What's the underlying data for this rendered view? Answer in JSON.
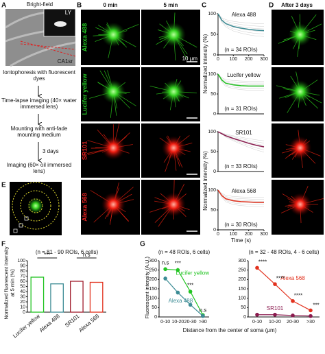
{
  "panel_labels": [
    "A",
    "B",
    "C",
    "D",
    "E",
    "F",
    "G"
  ],
  "panel_a": {
    "title": "Bright-field",
    "inset": "LY",
    "region": "CA1sr"
  },
  "flowchart": {
    "steps": [
      "Iontophoresis with fluorescent dyes",
      "Time-lapse imaging (40× water immersed lens)",
      "Mounting with anti-fade mounting medium",
      "Imaging (60× oil immersed lens)"
    ],
    "arrow_label": "3 days"
  },
  "panel_b": {
    "columns": [
      "0 min",
      "5 min"
    ],
    "rows": [
      "Alexa 488",
      "Lucifer yellow",
      "SR101",
      "Alexa 568"
    ],
    "row_colors": [
      "#22c422",
      "#22c422",
      "#e02020",
      "#e02020"
    ],
    "scale_bar": "10 μm"
  },
  "panel_d": {
    "title": "After 3 days"
  },
  "chart_data": [
    {
      "type": "line",
      "title": "Alexa 488",
      "annotation": "(n = 34 ROIs)",
      "ylabel": "Normalized intensity (%)",
      "x": [
        0,
        25,
        50,
        100,
        150,
        200,
        250,
        300
      ],
      "series": [
        {
          "color": "#3d8c95",
          "values": [
            100,
            84,
            76,
            69,
            65,
            62,
            60,
            59
          ]
        }
      ],
      "xlim": [
        0,
        300
      ],
      "ylim": [
        0,
        100
      ],
      "xticks": [
        0,
        100,
        200,
        300
      ],
      "yticks": [
        0,
        50,
        100
      ]
    },
    {
      "type": "line",
      "title": "Lucifer yellow",
      "annotation": "(n = 31 ROIs)",
      "x": [
        0,
        25,
        50,
        100,
        150,
        200,
        250,
        300
      ],
      "series": [
        {
          "color": "#22c422",
          "values": [
            100,
            85,
            77,
            73,
            71,
            70,
            70,
            70
          ]
        }
      ],
      "xlim": [
        0,
        300
      ],
      "ylim": [
        0,
        100
      ],
      "yticks": [
        0,
        50,
        100
      ]
    },
    {
      "type": "line",
      "title": "SR101",
      "annotation": "(n = 33 ROIs)",
      "ylabel": "Normalized intensity (%)",
      "x": [
        0,
        25,
        50,
        100,
        150,
        200,
        250,
        300
      ],
      "series": [
        {
          "color": "#8a1a4e",
          "values": [
            100,
            95,
            90,
            83,
            77,
            71,
            66,
            62
          ]
        }
      ],
      "xlim": [
        0,
        300
      ],
      "ylim": [
        0,
        100
      ],
      "yticks": [
        0,
        50,
        100
      ]
    },
    {
      "type": "line",
      "title": "Alexa 568",
      "annotation": "(n = 30 ROIs)",
      "xlabel": "Time (s)",
      "x": [
        0,
        25,
        50,
        100,
        150,
        200,
        250,
        300
      ],
      "series": [
        {
          "color": "#e2311d",
          "values": [
            100,
            86,
            78,
            73,
            71,
            70,
            69,
            69
          ]
        }
      ],
      "xlim": [
        0,
        300
      ],
      "ylim": [
        0,
        100
      ],
      "xticks": [
        0,
        100,
        200,
        300
      ],
      "yticks": [
        0,
        50,
        100
      ]
    },
    {
      "type": "bar",
      "title": "(n = 81 - 90 ROIs, 6 cells)",
      "ylabel": "Normalized fluorescent intensity at 5 min (%)",
      "categories": [
        "Lucifer yellow",
        "Alexa 488",
        "SR101",
        "Alexa 568"
      ],
      "values": [
        68,
        55,
        60,
        58
      ],
      "colors": [
        "#22c422",
        "#3d8c95",
        "#a01c2c",
        "#e2311d"
      ],
      "ylim": [
        0,
        100
      ],
      "yticks": [
        0,
        10,
        20,
        30,
        40,
        50,
        60,
        70,
        80,
        90,
        100
      ],
      "annotations": [
        "***",
        "n.s"
      ]
    },
    {
      "type": "errorline",
      "title": "(n = 48 ROIs, 6 cells)",
      "ylabel": "Fluorescent intensity (A.U.)",
      "categories": [
        "0-10",
        "10-20",
        "20-30",
        ">30"
      ],
      "series": [
        {
          "name": "Lucifer yellow",
          "color": "#22c422",
          "values": [
            255,
            250,
            135,
            10
          ],
          "errors": [
            10,
            12,
            10,
            3
          ]
        },
        {
          "name": "Alexa 488",
          "color": "#3d8c95",
          "values": [
            205,
            130,
            65,
            5
          ],
          "errors": [
            10,
            10,
            8,
            3
          ]
        }
      ],
      "ylim": [
        0,
        300
      ],
      "yticks": [
        0,
        50,
        100,
        150,
        200,
        250,
        300
      ],
      "annotations": [
        "n.s",
        "***",
        "***",
        "n.s"
      ]
    },
    {
      "type": "errorline",
      "title": "(n = 32 - 48 ROIs, 4 - 6 cells)",
      "xlabel": "Distance from the center of soma (μm)",
      "categories": [
        "0-10",
        "10-20",
        "20-30",
        ">30"
      ],
      "series": [
        {
          "name": "Alexa 568",
          "color": "#e2311d",
          "values": [
            262,
            175,
            85,
            35
          ],
          "errors": [
            8,
            6,
            5,
            4
          ]
        },
        {
          "name": "SR101",
          "color": "#8a1a4e",
          "values": [
            12,
            12,
            8,
            5
          ],
          "errors": [
            2,
            2,
            2,
            2
          ]
        }
      ],
      "ylim": [
        0,
        300
      ],
      "yticks": [
        0,
        50,
        100,
        150,
        200,
        250,
        300
      ],
      "annotations": [
        "****",
        "****",
        "****",
        "***"
      ]
    }
  ]
}
